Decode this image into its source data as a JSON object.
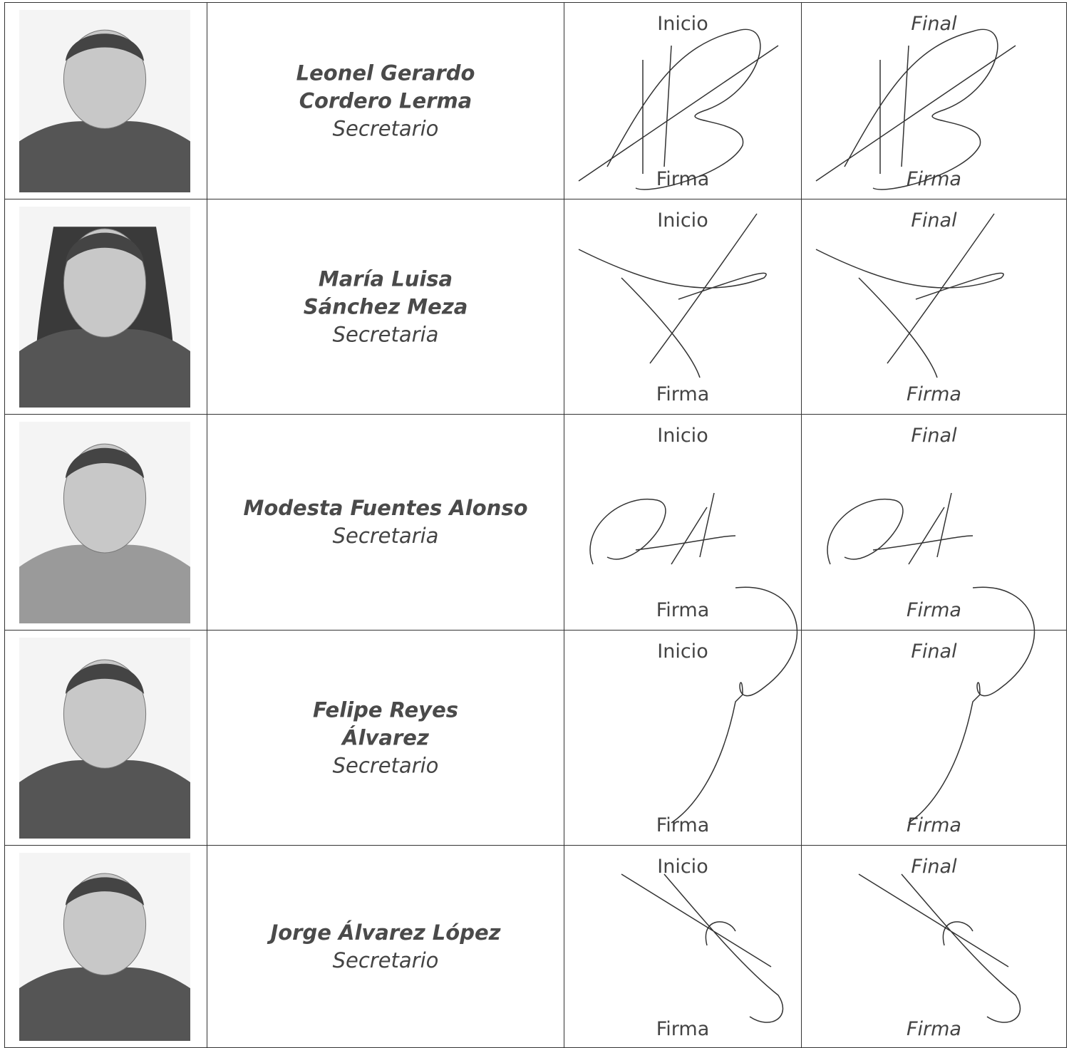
{
  "table": {
    "rows": [
      {
        "name": [
          "Leonel Gerardo",
          "Cordero Lerma"
        ],
        "role": "Secretario",
        "start": {
          "label": "Inicio",
          "caption": "Firma"
        },
        "end": {
          "label": "Final",
          "caption": "Firma"
        }
      },
      {
        "name": [
          "María Luisa",
          "Sánchez Meza"
        ],
        "role": "Secretaria",
        "start": {
          "label": "Inicio",
          "caption": "Firma"
        },
        "end": {
          "label": "Final",
          "caption": "Firma"
        }
      },
      {
        "name": [
          "Modesta Fuentes Alonso"
        ],
        "role": "Secretaria",
        "start": {
          "label": "Inicio",
          "caption": "Firma"
        },
        "end": {
          "label": "Final",
          "caption": "Firma"
        }
      },
      {
        "name": [
          "Felipe Reyes",
          "Álvarez"
        ],
        "role": "Secretario",
        "start": {
          "label": "Inicio",
          "caption": "Firma"
        },
        "end": {
          "label": "Final",
          "caption": "Firma"
        }
      },
      {
        "name": [
          "Jorge Álvarez López"
        ],
        "role": "Secretario",
        "start": {
          "label": "Inicio",
          "caption": "Firma"
        },
        "end": {
          "label": "Final",
          "caption": "Firma"
        }
      }
    ]
  }
}
